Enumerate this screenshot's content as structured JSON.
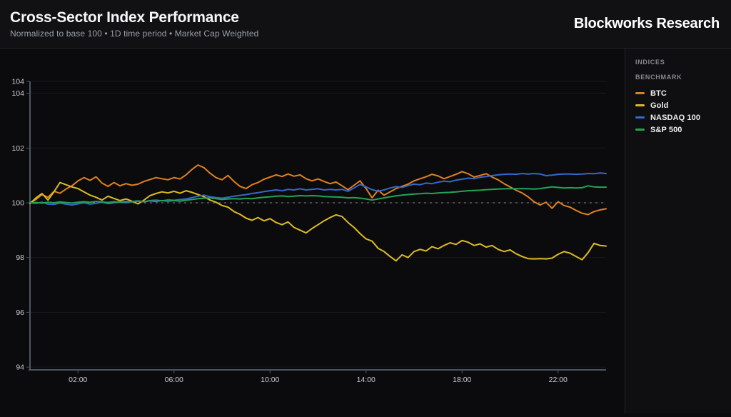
{
  "header": {
    "title": "Cross-Sector Index Performance",
    "subtitle": "Normalized to base 100 • 1D time period • Market Cap Weighted",
    "brand": "Blockworks Research"
  },
  "side_panel": {
    "section1_label": "INDICES",
    "section2_label": "BENCHMARK"
  },
  "chart_data": {
    "type": "line",
    "title": "Cross-Sector Index Performance",
    "normalized_base": 100,
    "time_period": "1D",
    "weighting": "Market Cap Weighted",
    "x_axis": {
      "start_hour": 0,
      "end_hour": 24,
      "interval_minutes": 15,
      "tick_labels": [
        "02:00",
        "06:00",
        "10:00",
        "14:00",
        "18:00",
        "22:00"
      ],
      "tick_hours": [
        2,
        6,
        10,
        14,
        18,
        22
      ]
    },
    "y_axis": {
      "domain": [
        93.9,
        104.43
      ],
      "edge_tick_label": "104",
      "ticks": [
        {
          "label": "104",
          "value": 104
        },
        {
          "label": "102",
          "value": 102
        },
        {
          "label": "100",
          "value": 100
        },
        {
          "label": "98",
          "value": 98
        },
        {
          "label": "96",
          "value": 96
        },
        {
          "label": "94",
          "value": 94
        }
      ]
    },
    "baseline": {
      "value": 100,
      "style": "dashed",
      "color": "#8b9097"
    },
    "grid": {
      "horizontal": true,
      "vertical": false,
      "color": "#1a1a1e"
    },
    "legend_position": "right",
    "series": [
      {
        "name": "BTC",
        "color": "#e0811f",
        "values": [
          100.0,
          100.12,
          100.3,
          100.2,
          100.42,
          100.35,
          100.5,
          100.62,
          100.8,
          100.92,
          100.82,
          100.95,
          100.72,
          100.6,
          100.74,
          100.62,
          100.7,
          100.64,
          100.68,
          100.78,
          100.85,
          100.92,
          100.88,
          100.84,
          100.92,
          100.87,
          101.02,
          101.22,
          101.38,
          101.28,
          101.08,
          100.92,
          100.84,
          101.0,
          100.78,
          100.6,
          100.52,
          100.66,
          100.74,
          100.86,
          100.94,
          101.02,
          100.96,
          101.05,
          100.97,
          101.02,
          100.88,
          100.8,
          100.87,
          100.78,
          100.7,
          100.76,
          100.62,
          100.48,
          100.64,
          100.8,
          100.52,
          100.18,
          100.46,
          100.28,
          100.4,
          100.52,
          100.6,
          100.68,
          100.8,
          100.88,
          100.95,
          101.04,
          100.98,
          100.88,
          100.96,
          101.04,
          101.14,
          101.06,
          100.94,
          101.0,
          101.06,
          100.94,
          100.84,
          100.7,
          100.58,
          100.46,
          100.36,
          100.22,
          100.04,
          99.92,
          100.02,
          99.8,
          100.04,
          99.9,
          99.84,
          99.72,
          99.62,
          99.57,
          99.68,
          99.74,
          99.78
        ]
      },
      {
        "name": "Gold",
        "color": "#dcbb22",
        "values": [
          99.97,
          100.18,
          100.34,
          100.1,
          100.4,
          100.74,
          100.66,
          100.58,
          100.52,
          100.4,
          100.28,
          100.2,
          100.1,
          100.24,
          100.16,
          100.08,
          100.14,
          100.06,
          99.96,
          100.1,
          100.26,
          100.34,
          100.4,
          100.36,
          100.42,
          100.35,
          100.44,
          100.38,
          100.3,
          100.22,
          100.1,
          100.02,
          99.9,
          99.84,
          99.68,
          99.58,
          99.44,
          99.36,
          99.46,
          99.34,
          99.42,
          99.28,
          99.2,
          99.3,
          99.1,
          99.0,
          98.9,
          99.06,
          99.2,
          99.34,
          99.46,
          99.56,
          99.5,
          99.28,
          99.1,
          98.88,
          98.68,
          98.6,
          98.34,
          98.22,
          98.04,
          97.88,
          98.1,
          98.0,
          98.22,
          98.3,
          98.24,
          98.4,
          98.32,
          98.44,
          98.54,
          98.48,
          98.62,
          98.56,
          98.44,
          98.5,
          98.38,
          98.44,
          98.3,
          98.22,
          98.28,
          98.14,
          98.04,
          97.96,
          97.95,
          97.96,
          97.95,
          97.98,
          98.12,
          98.22,
          98.16,
          98.04,
          97.92,
          98.18,
          98.52,
          98.44,
          98.42
        ]
      },
      {
        "name": "NASDAQ 100",
        "color": "#3568cc",
        "values": [
          100.0,
          99.98,
          100.02,
          99.95,
          99.94,
          99.99,
          99.95,
          99.92,
          99.96,
          100.0,
          99.95,
          99.98,
          100.02,
          99.97,
          100.0,
          100.04,
          100.0,
          100.05,
          100.07,
          100.04,
          100.08,
          100.1,
          100.07,
          100.11,
          100.09,
          100.12,
          100.14,
          100.19,
          100.24,
          100.28,
          100.22,
          100.19,
          100.17,
          100.2,
          100.24,
          100.27,
          100.3,
          100.34,
          100.37,
          100.41,
          100.44,
          100.47,
          100.44,
          100.49,
          100.47,
          100.51,
          100.47,
          100.49,
          100.51,
          100.47,
          100.49,
          100.47,
          100.49,
          100.42,
          100.54,
          100.67,
          100.58,
          100.48,
          100.42,
          100.47,
          100.54,
          100.59,
          100.56,
          100.63,
          100.68,
          100.66,
          100.72,
          100.7,
          100.75,
          100.79,
          100.77,
          100.83,
          100.86,
          100.9,
          100.88,
          100.93,
          100.96,
          100.99,
          101.02,
          101.04,
          101.05,
          101.04,
          101.07,
          101.05,
          101.07,
          101.05,
          100.99,
          101.01,
          101.04,
          101.05,
          101.05,
          101.04,
          101.05,
          101.07,
          101.06,
          101.09,
          101.07
        ]
      },
      {
        "name": "S&P 500",
        "color": "#23a455",
        "values": [
          100.0,
          100.01,
          99.99,
          100.02,
          100.0,
          100.03,
          100.01,
          99.99,
          100.02,
          100.04,
          100.02,
          100.05,
          100.03,
          100.01,
          100.04,
          100.02,
          100.05,
          100.03,
          100.06,
          100.04,
          100.07,
          100.05,
          100.08,
          100.06,
          100.08,
          100.06,
          100.09,
          100.12,
          100.15,
          100.17,
          100.18,
          100.15,
          100.12,
          100.14,
          100.15,
          100.14,
          100.16,
          100.15,
          100.18,
          100.2,
          100.22,
          100.24,
          100.25,
          100.23,
          100.24,
          100.26,
          100.25,
          100.26,
          100.25,
          100.23,
          100.22,
          100.21,
          100.2,
          100.18,
          100.19,
          100.17,
          100.14,
          100.1,
          100.14,
          100.18,
          100.22,
          100.25,
          100.28,
          100.3,
          100.32,
          100.33,
          100.35,
          100.34,
          100.36,
          100.37,
          100.38,
          100.4,
          100.42,
          100.44,
          100.45,
          100.46,
          100.48,
          100.49,
          100.5,
          100.51,
          100.52,
          100.51,
          100.52,
          100.51,
          100.5,
          100.52,
          100.55,
          100.58,
          100.56,
          100.54,
          100.55,
          100.54,
          100.55,
          100.62,
          100.58,
          100.57,
          100.57
        ]
      }
    ]
  }
}
